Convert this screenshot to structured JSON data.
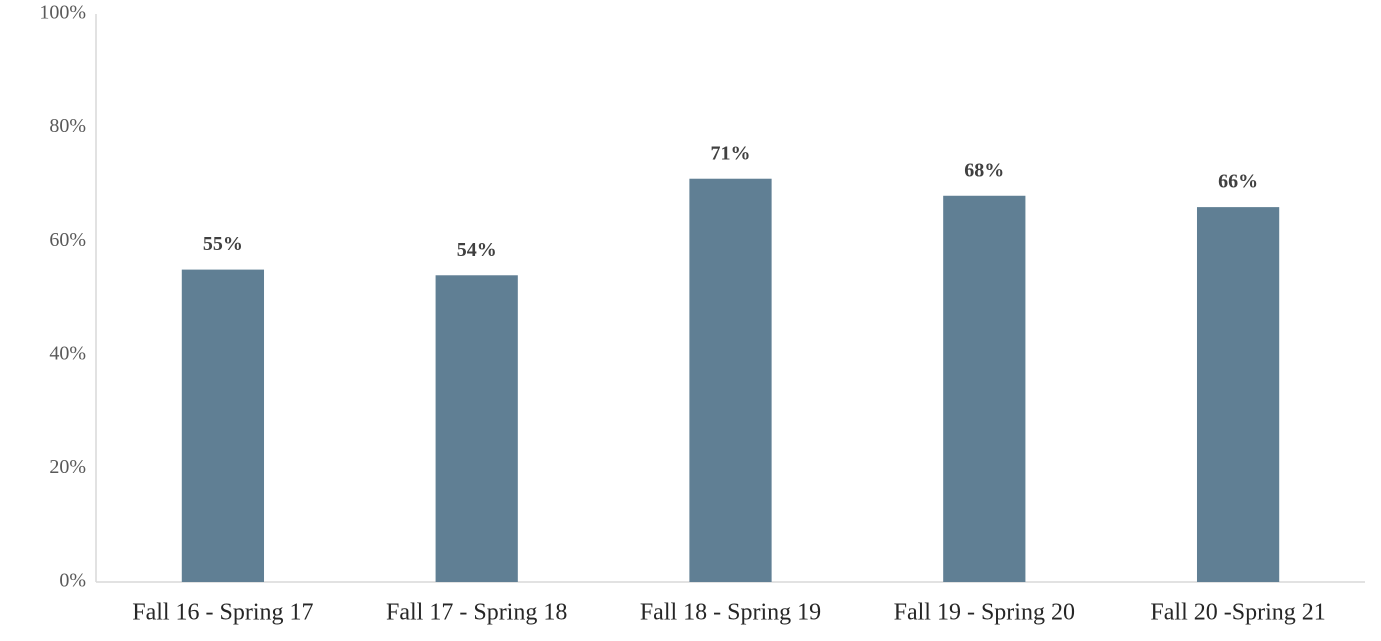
{
  "chart_data": {
    "type": "bar",
    "categories": [
      "Fall 16 - Spring 17",
      "Fall 17 - Spring 18",
      "Fall 18 - Spring 19",
      "Fall 19 - Spring 20",
      "Fall 20 -Spring 21"
    ],
    "values": [
      55,
      54,
      71,
      68,
      66
    ],
    "value_labels": [
      "55%",
      "54%",
      "71%",
      "68%",
      "66%"
    ],
    "color": "#607f94",
    "ylim": [
      0,
      100
    ],
    "yticks": [
      {
        "value": 0,
        "label": "0%"
      },
      {
        "value": 20,
        "label": "20%"
      },
      {
        "value": 40,
        "label": "40%"
      },
      {
        "value": 60,
        "label": "60%"
      },
      {
        "value": 80,
        "label": "80%"
      },
      {
        "value": 100,
        "label": "100%"
      }
    ],
    "grid": false
  }
}
